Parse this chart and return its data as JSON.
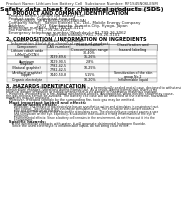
{
  "background_color": "#ffffff",
  "page_header_left": "Product Name: Lithium Ion Battery Cell",
  "page_header_right": "Substance Number: RF1S45N06LESM\nEstablishment / Revision: Dec.7 2016",
  "title": "Safety data sheet for chemical products (SDS)",
  "section1_title": "1. PRODUCT AND COMPANY IDENTIFICATION",
  "section1_lines": [
    "  Product name: Lithium Ion Battery Cell",
    "  Product code: Cylindrical-type cell",
    "      (UFR18650, UFR18650L, UFR18650A)",
    "  Company name:   Sanyo Electric Co., Ltd., Mobile Energy Company",
    "  Address:         2201  Kamikosaka, Sumoto-City, Hyogo, Japan",
    "  Telephone number:  +81-799-26-4111",
    "  Fax number:  +81-799-26-4120",
    "  Emergency telephone number (Weekday):+81-799-26-3062",
    "                                (Night and holiday):+81-799-26-3101"
  ],
  "section2_title": "2. COMPOSITION / INFORMATION ON INGREDIENTS",
  "section2_sub": "  Substance or preparation: Preparation",
  "section2_sub2": "    Information about the chemical nature of product:",
  "table_headers": [
    "Component",
    "CAS number",
    "Concentration /\nConcentration range",
    "Classification and\nhazard labeling"
  ],
  "table_rows": [
    [
      "Lithium cobalt oxide\n(LiMn/CoO(CN))",
      "-",
      "30-40%",
      ""
    ],
    [
      "Iron",
      "7439-89-6",
      "16-26%",
      ""
    ],
    [
      "Aluminum",
      "7429-90-5",
      "2-8%",
      ""
    ],
    [
      "Graphite\n(Natural graphite)\n(Artificial graphite)",
      "7782-42-5\n7782-42-5",
      "10-25%",
      ""
    ],
    [
      "Copper",
      "7440-50-8",
      "5-15%",
      "Sensitization of the skin\ngroup No.2"
    ],
    [
      "Organic electrolyte",
      "-",
      "10-20%",
      "Inflammable liquid"
    ]
  ],
  "section3_title": "3. HAZARDS IDENTIFICATION",
  "section3_body": "For the battery cell, chemical materials are stored in a hermetically sealed metal case, designed to withstand\ntemperature changes, vibrations during normal use. As a result, during normal use, there is no\nphysical danger of ignition or explosion and there is no danger of hazardous materials leakage.\n   However, if exposed to a fire, added mechanical shocks, decomposed, when electric shock may cause,\nthe gas release cannot be avoided. The battery cell case will be breached at the extreme, hazardous\nmaterials may be released.\n   Moreover, if heated strongly by the surrounding fire, toxic gas may be emitted.",
  "section3_important": "  Most important hazard and effects:",
  "section3_human": "      Human health effects:",
  "section3_human_body": "         Inhalation: The release of the electrolyte has an anesthetics action and stimulates in respiratory tract.\n         Skin contact: The release of the electrolyte stimulates a skin. The electrolyte skin contact causes a\n         sore and stimulation on the skin.\n         Eye contact: The release of the electrolyte stimulates eyes. The electrolyte eye contact causes a sore\n         and stimulation on the eye. Especially, a substance that causes a strong inflammation of the eye is\n         contained.\n         Environmental effects: Since a battery cell remains in the environment, do not throw out it into the\n         environment.",
  "section3_specific": "  Specific hazards:",
  "section3_specific_body": "      If the electrolyte contacts with water, it will generate detrimental hydrogen fluoride.\n      Since the used electrolyte is inflammable liquid, do not bring close to fire."
}
